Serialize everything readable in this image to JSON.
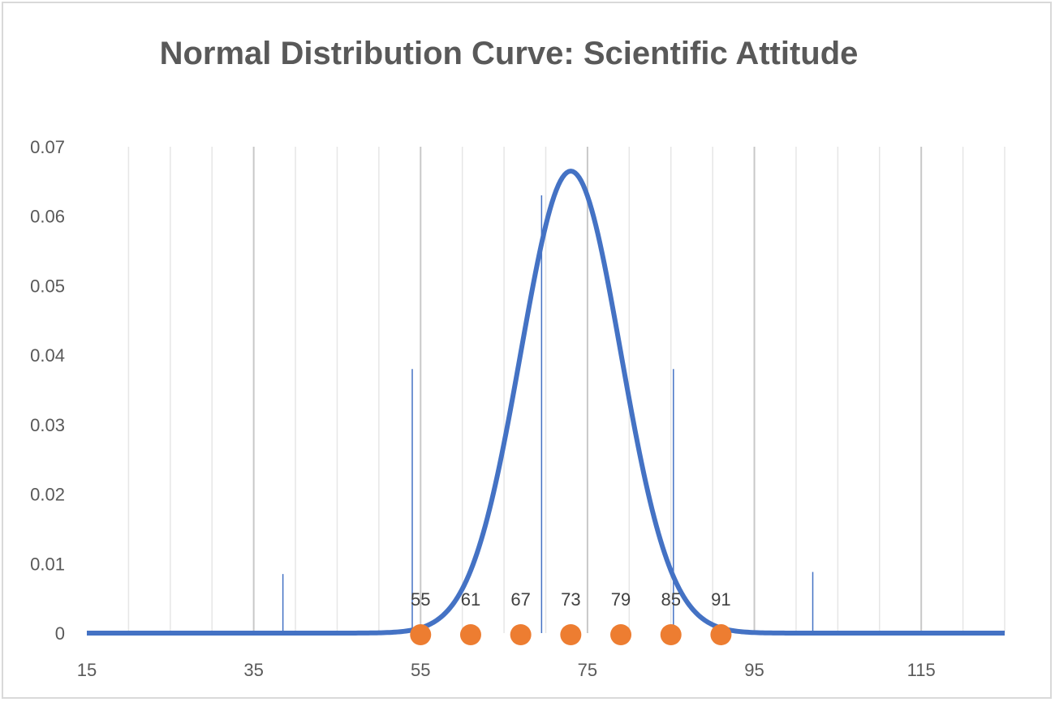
{
  "chart_data": {
    "type": "line",
    "title": "Normal Distribution Curve: Scientific Attitude",
    "xlabel": "",
    "ylabel": "",
    "xlim": [
      15,
      125
    ],
    "ylim": [
      0,
      0.07
    ],
    "x_ticks": [
      15,
      35,
      55,
      75,
      95,
      115
    ],
    "y_ticks": [
      0,
      0.01,
      0.02,
      0.03,
      0.04,
      0.05,
      0.06,
      0.07
    ],
    "y_tick_labels": [
      "0",
      "0.01",
      "0.02",
      "0.03",
      "0.04",
      "0.05",
      "0.06",
      "0.07"
    ],
    "x_tick_labels": [
      "15",
      "35",
      "55",
      "75",
      "95",
      "115"
    ],
    "grid": "vertical",
    "series": [
      {
        "kind": "normal-curve",
        "mean": 73,
        "sd": 6,
        "color": "#4472c4"
      },
      {
        "kind": "points",
        "x": [
          55,
          61,
          67,
          73,
          79,
          85,
          91
        ],
        "y": [
          0,
          0,
          0,
          0,
          0,
          0,
          0
        ],
        "labels": [
          "55",
          "61",
          "67",
          "73",
          "79",
          "85",
          "91"
        ],
        "color": "#ed7d31"
      },
      {
        "kind": "reference-lines",
        "x": [
          38.5,
          54,
          69.5,
          85.3,
          102
        ],
        "y": [
          0.0085,
          0.038,
          0.063,
          0.038,
          0.0088
        ],
        "color": "#4472c4"
      }
    ]
  }
}
